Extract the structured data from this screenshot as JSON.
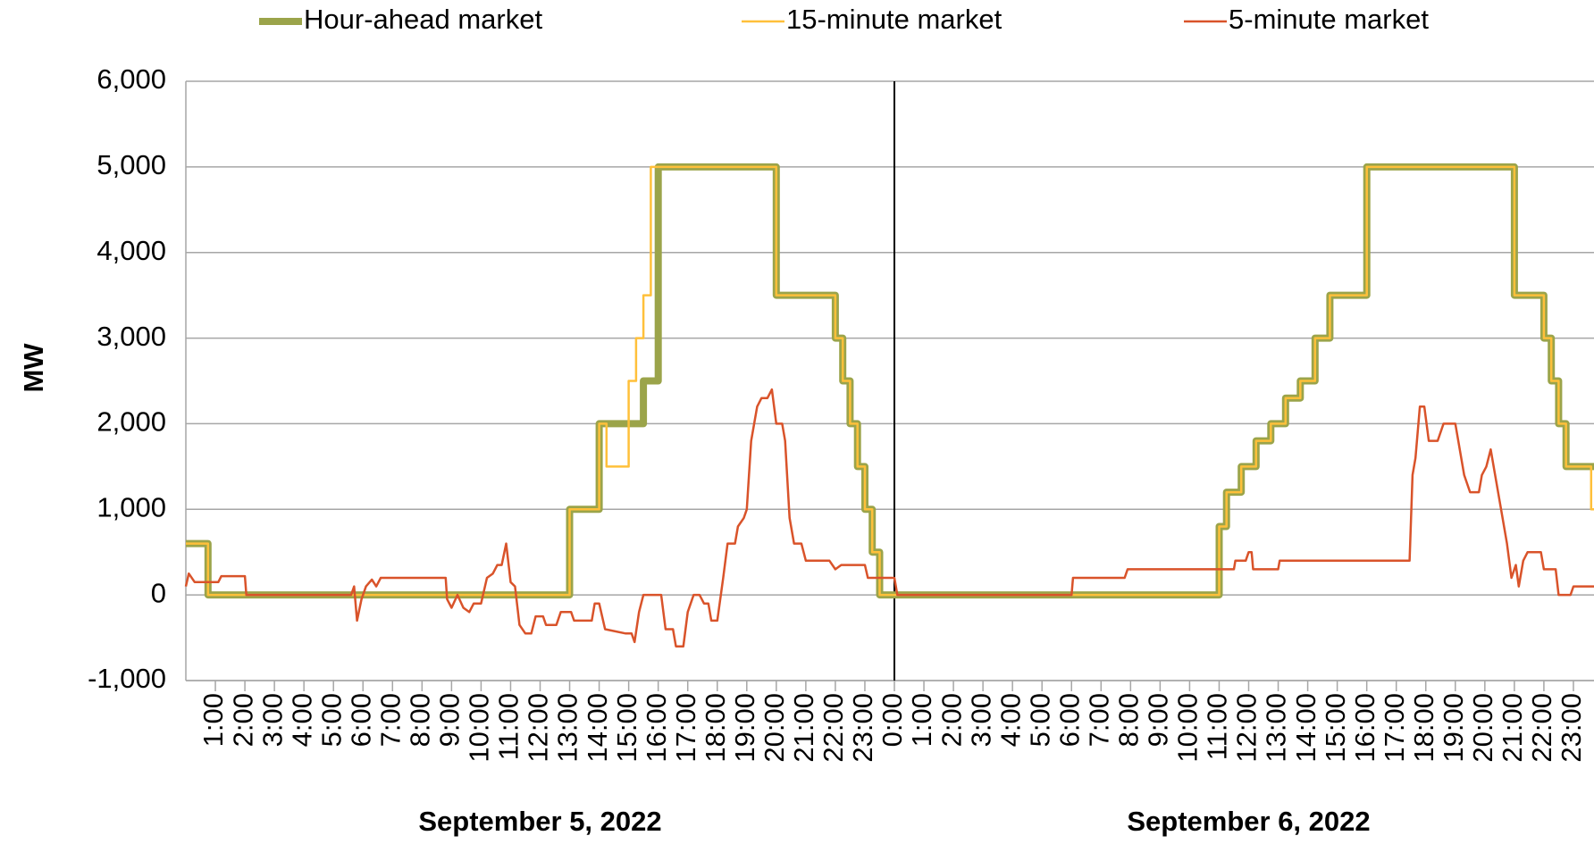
{
  "chart_data": {
    "type": "line",
    "y_label": "MW",
    "annotations": [
      "September 5, 2022",
      "September 6, 2022"
    ],
    "day_divider": 24,
    "xlim": [
      0,
      48
    ],
    "ylim": [
      -1000,
      6000
    ],
    "yticks": [
      {
        "value": -1000,
        "label": "-1,000"
      },
      0,
      {
        "value": 1000,
        "label": "1,000"
      },
      {
        "value": 2000,
        "label": "2,000"
      },
      {
        "value": 3000,
        "label": "3,000"
      },
      {
        "value": 4000,
        "label": "4,000"
      },
      {
        "value": 5000,
        "label": "5,000"
      },
      {
        "value": 6000,
        "label": "6,000"
      }
    ],
    "xticks": [
      {
        "value": 1,
        "label": "1:00"
      },
      {
        "value": 2,
        "label": "2:00"
      },
      {
        "value": 3,
        "label": "3:00"
      },
      {
        "value": 4,
        "label": "4:00"
      },
      {
        "value": 5,
        "label": "5:00"
      },
      {
        "value": 6,
        "label": "6:00"
      },
      {
        "value": 7,
        "label": "7:00"
      },
      {
        "value": 8,
        "label": "8:00"
      },
      {
        "value": 9,
        "label": "9:00"
      },
      {
        "value": 10,
        "label": "10:00"
      },
      {
        "value": 11,
        "label": "11:00"
      },
      {
        "value": 12,
        "label": "12:00"
      },
      {
        "value": 13,
        "label": "13:00"
      },
      {
        "value": 14,
        "label": "14:00"
      },
      {
        "value": 15,
        "label": "15:00"
      },
      {
        "value": 16,
        "label": "16:00"
      },
      {
        "value": 17,
        "label": "17:00"
      },
      {
        "value": 18,
        "label": "18:00"
      },
      {
        "value": 19,
        "label": "19:00"
      },
      {
        "value": 20,
        "label": "20:00"
      },
      {
        "value": 21,
        "label": "21:00"
      },
      {
        "value": 22,
        "label": "22:00"
      },
      {
        "value": 23,
        "label": "23:00"
      },
      {
        "value": 24,
        "label": "0:00"
      },
      {
        "value": 25,
        "label": "1:00"
      },
      {
        "value": 26,
        "label": "2:00"
      },
      {
        "value": 27,
        "label": "3:00"
      },
      {
        "value": 28,
        "label": "4:00"
      },
      {
        "value": 29,
        "label": "5:00"
      },
      {
        "value": 30,
        "label": "6:00"
      },
      {
        "value": 31,
        "label": "7:00"
      },
      {
        "value": 32,
        "label": "8:00"
      },
      {
        "value": 33,
        "label": "9:00"
      },
      {
        "value": 34,
        "label": "10:00"
      },
      {
        "value": 35,
        "label": "11:00"
      },
      {
        "value": 36,
        "label": "12:00"
      },
      {
        "value": 37,
        "label": "13:00"
      },
      {
        "value": 38,
        "label": "14:00"
      },
      {
        "value": 39,
        "label": "15:00"
      },
      {
        "value": 40,
        "label": "16:00"
      },
      {
        "value": 41,
        "label": "17:00"
      },
      {
        "value": 42,
        "label": "18:00"
      },
      {
        "value": 43,
        "label": "19:00"
      },
      {
        "value": 44,
        "label": "20:00"
      },
      {
        "value": 45,
        "label": "21:00"
      },
      {
        "value": 46,
        "label": "22:00"
      },
      {
        "value": 47,
        "label": "23:00"
      }
    ],
    "grid": true,
    "series": [
      {
        "name": "Hour-ahead market",
        "color": "#9ba44a",
        "x": [
          0,
          0.75,
          0.75,
          13,
          13,
          14,
          14,
          15.5,
          15.5,
          16,
          16,
          20,
          20,
          22,
          22,
          22.25,
          22.25,
          22.5,
          22.5,
          22.75,
          22.75,
          23,
          23,
          23.25,
          23.25,
          23.5,
          23.5,
          35,
          35,
          35.25,
          35.25,
          35.75,
          35.75,
          36.25,
          36.25,
          36.75,
          36.75,
          37.25,
          37.25,
          37.75,
          37.75,
          38.25,
          38.25,
          38.75,
          38.75,
          40,
          40,
          45,
          45,
          46,
          46,
          46.25,
          46.25,
          46.5,
          46.5,
          46.75,
          46.75,
          48
        ],
        "values": [
          600,
          600,
          0,
          0,
          1000,
          1000,
          2000,
          2000,
          2500,
          2500,
          5000,
          5000,
          3500,
          3500,
          3000,
          3000,
          2500,
          2500,
          2000,
          2000,
          1500,
          1500,
          1000,
          1000,
          500,
          500,
          0,
          0,
          800,
          800,
          1200,
          1200,
          1500,
          1500,
          1800,
          1800,
          2000,
          2000,
          2300,
          2300,
          2500,
          2500,
          3000,
          3000,
          3500,
          3500,
          5000,
          5000,
          3500,
          3500,
          3000,
          3000,
          2500,
          2500,
          2000,
          2000,
          1500,
          1500
        ]
      },
      {
        "name": "15-minute market",
        "color": "#ffc03a",
        "x": [
          0,
          0.75,
          0.75,
          13,
          13,
          14,
          14,
          14.25,
          14.25,
          15,
          15,
          15.25,
          15.25,
          15.5,
          15.5,
          15.75,
          15.75,
          20,
          20,
          22,
          22,
          22.25,
          22.25,
          22.5,
          22.5,
          22.75,
          22.75,
          23,
          23,
          23.25,
          23.25,
          23.5,
          23.5,
          35,
          35,
          35.25,
          35.25,
          35.75,
          35.75,
          36.25,
          36.25,
          36.75,
          36.75,
          37.25,
          37.25,
          37.75,
          37.75,
          38.25,
          38.25,
          38.75,
          38.75,
          40,
          40,
          45,
          45,
          46,
          46,
          46.25,
          46.25,
          46.5,
          46.5,
          46.75,
          46.75,
          47.6,
          47.6,
          47.75,
          47.75,
          48
        ],
        "values": [
          600,
          600,
          0,
          0,
          1000,
          1000,
          2000,
          2000,
          1500,
          1500,
          2500,
          2500,
          3000,
          3000,
          3500,
          3500,
          5000,
          5000,
          3500,
          3500,
          3000,
          3000,
          2500,
          2500,
          2000,
          2000,
          1500,
          1500,
          1000,
          1000,
          500,
          500,
          0,
          0,
          800,
          800,
          1200,
          1200,
          1500,
          1500,
          1800,
          1800,
          2000,
          2000,
          2300,
          2300,
          2500,
          2500,
          3000,
          3000,
          3500,
          3500,
          5000,
          5000,
          3500,
          3500,
          3000,
          3000,
          2500,
          2500,
          2000,
          2000,
          1500,
          1500,
          1000,
          1000,
          500,
          500
        ]
      },
      {
        "name": "5-minute market",
        "color": "#d9532a",
        "x": [
          0,
          0.1,
          0.3,
          1.1,
          1.2,
          2,
          2.05,
          5.6,
          5.7,
          5.8,
          5.95,
          6.1,
          6.3,
          6.45,
          6.6,
          8.8,
          8.85,
          9,
          9.2,
          9.4,
          9.6,
          9.75,
          10,
          10.2,
          10.4,
          10.55,
          10.7,
          10.85,
          11,
          11.15,
          11.3,
          11.5,
          11.7,
          11.85,
          12.1,
          12.2,
          12.55,
          12.7,
          13.05,
          13.15,
          13.75,
          13.85,
          14,
          14.2,
          14.9,
          15.1,
          15.2,
          15.35,
          15.5,
          16.1,
          16.25,
          16.5,
          16.6,
          16.85,
          17,
          17.2,
          17.4,
          17.55,
          17.7,
          17.8,
          18,
          18.2,
          18.35,
          18.6,
          18.7,
          18.9,
          19,
          19.15,
          19.35,
          19.5,
          19.7,
          19.85,
          20,
          20.2,
          20.3,
          20.45,
          20.6,
          20.85,
          21,
          21.8,
          22,
          22.2,
          23,
          23.1,
          24,
          24.1,
          30,
          30.05,
          31.8,
          31.9,
          35.5,
          35.55,
          35.9,
          36,
          36.1,
          36.15,
          37,
          37.05,
          41.45,
          41.55,
          41.65,
          41.8,
          41.95,
          42.1,
          42.4,
          42.6,
          43,
          43.1,
          43.3,
          43.5,
          43.8,
          43.9,
          44.05,
          44.2,
          44.3,
          44.55,
          44.75,
          44.9,
          45.05,
          45.15,
          45.3,
          45.45,
          45.9,
          46,
          46.4,
          46.5,
          46.9,
          47,
          48
        ],
        "values": [
          100,
          250,
          150,
          150,
          220,
          220,
          0,
          0,
          100,
          -300,
          -50,
          100,
          180,
          100,
          200,
          200,
          -50,
          -150,
          0,
          -150,
          -200,
          -100,
          -100,
          200,
          250,
          350,
          350,
          600,
          150,
          100,
          -350,
          -450,
          -450,
          -250,
          -250,
          -350,
          -350,
          -200,
          -200,
          -300,
          -300,
          -100,
          -100,
          -400,
          -450,
          -450,
          -550,
          -200,
          0,
          0,
          -400,
          -400,
          -600,
          -600,
          -200,
          0,
          0,
          -100,
          -100,
          -300,
          -300,
          200,
          600,
          600,
          800,
          900,
          1000,
          1800,
          2200,
          2300,
          2300,
          2400,
          2000,
          2000,
          1800,
          900,
          600,
          600,
          400,
          400,
          300,
          350,
          350,
          200,
          200,
          0,
          0,
          200,
          200,
          300,
          300,
          400,
          400,
          500,
          500,
          300,
          300,
          400,
          400,
          1400,
          1600,
          2200,
          2200,
          1800,
          1800,
          2000,
          2000,
          1800,
          1400,
          1200,
          1200,
          1400,
          1500,
          1700,
          1500,
          1000,
          600,
          200,
          350,
          100,
          400,
          500,
          500,
          300,
          300,
          0,
          0,
          100,
          100
        ]
      }
    ]
  }
}
